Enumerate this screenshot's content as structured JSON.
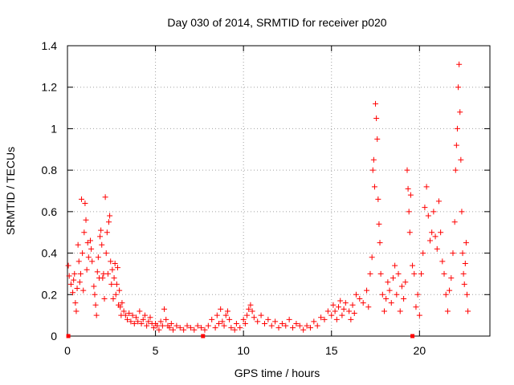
{
  "chart_data": {
    "type": "scatter",
    "title": "Day 030 of 2014, SRMTID for receiver p020",
    "xlabel": "GPS time / hours",
    "ylabel": "SRMTID / TECUs",
    "xlim": [
      0,
      24
    ],
    "ylim": [
      0,
      1.4
    ],
    "x_ticks": [
      0,
      5,
      10,
      15,
      20
    ],
    "y_ticks": [
      0,
      0.2,
      0.4,
      0.6,
      0.8,
      1,
      1.2,
      1.4
    ],
    "x_tick_labels": [
      "0",
      "5",
      "10",
      "15",
      "20"
    ],
    "y_tick_labels": [
      "0",
      "0.2",
      "0.4",
      "0.6",
      "0.8",
      "1",
      "1.2",
      "1.4"
    ],
    "grid": true,
    "legend": "none",
    "marker": "plus",
    "color": "#ff0000",
    "series": [
      {
        "name": "SRMTID",
        "points": [
          [
            0.05,
            0.34
          ],
          [
            0.1,
            0.29
          ],
          [
            0.2,
            0.25
          ],
          [
            0.3,
            0.21
          ],
          [
            0.35,
            0.27
          ],
          [
            0.4,
            0.3
          ],
          [
            0.45,
            0.16
          ],
          [
            0.5,
            0.12
          ],
          [
            0.55,
            0.23
          ],
          [
            0.6,
            0.44
          ],
          [
            0.65,
            0.36
          ],
          [
            0.7,
            0.26
          ],
          [
            0.75,
            0.3
          ],
          [
            0.8,
            0.66
          ],
          [
            0.85,
            0.4
          ],
          [
            0.9,
            0.22
          ],
          [
            0.95,
            0.5
          ],
          [
            1.0,
            0.64
          ],
          [
            1.05,
            0.56
          ],
          [
            1.1,
            0.32
          ],
          [
            1.15,
            0.45
          ],
          [
            1.2,
            0.38
          ],
          [
            1.3,
            0.46
          ],
          [
            1.35,
            0.42
          ],
          [
            1.4,
            0.36
          ],
          [
            1.5,
            0.24
          ],
          [
            1.55,
            0.2
          ],
          [
            1.6,
            0.15
          ],
          [
            1.65,
            0.1
          ],
          [
            1.7,
            0.31
          ],
          [
            1.75,
            0.38
          ],
          [
            1.8,
            0.28
          ],
          [
            1.85,
            0.48
          ],
          [
            1.9,
            0.51
          ],
          [
            1.95,
            0.44
          ],
          [
            2.0,
            0.28
          ],
          [
            2.05,
            0.3
          ],
          [
            2.1,
            0.18
          ],
          [
            2.15,
            0.67
          ],
          [
            2.2,
            0.4
          ],
          [
            2.25,
            0.5
          ],
          [
            2.3,
            0.3
          ],
          [
            2.35,
            0.55
          ],
          [
            2.4,
            0.58
          ],
          [
            2.45,
            0.36
          ],
          [
            2.5,
            0.25
          ],
          [
            2.55,
            0.32
          ],
          [
            2.6,
            0.18
          ],
          [
            2.65,
            0.28
          ],
          [
            2.7,
            0.35
          ],
          [
            2.75,
            0.2
          ],
          [
            2.8,
            0.25
          ],
          [
            2.85,
            0.33
          ],
          [
            2.9,
            0.15
          ],
          [
            2.95,
            0.22
          ],
          [
            3.0,
            0.14
          ],
          [
            3.05,
            0.1
          ],
          [
            3.1,
            0.16
          ],
          [
            3.2,
            0.12
          ],
          [
            3.3,
            0.1
          ],
          [
            3.4,
            0.08
          ],
          [
            3.5,
            0.11
          ],
          [
            3.6,
            0.07
          ],
          [
            3.7,
            0.1
          ],
          [
            3.8,
            0.06
          ],
          [
            3.9,
            0.09
          ],
          [
            4.0,
            0.07
          ],
          [
            4.1,
            0.12
          ],
          [
            4.2,
            0.06
          ],
          [
            4.3,
            0.08
          ],
          [
            4.4,
            0.1
          ],
          [
            4.5,
            0.05
          ],
          [
            4.6,
            0.07
          ],
          [
            4.7,
            0.09
          ],
          [
            4.8,
            0.06
          ],
          [
            4.9,
            0.04
          ],
          [
            5.0,
            0.06
          ],
          [
            5.1,
            0.05
          ],
          [
            5.2,
            0.03
          ],
          [
            5.3,
            0.07
          ],
          [
            5.4,
            0.05
          ],
          [
            5.5,
            0.13
          ],
          [
            5.6,
            0.08
          ],
          [
            5.7,
            0.05
          ],
          [
            5.8,
            0.04
          ],
          [
            5.9,
            0.06
          ],
          [
            6.0,
            0.03
          ],
          [
            6.2,
            0.05
          ],
          [
            6.4,
            0.04
          ],
          [
            6.6,
            0.03
          ],
          [
            6.8,
            0.05
          ],
          [
            7.0,
            0.04
          ],
          [
            7.2,
            0.03
          ],
          [
            7.4,
            0.05
          ],
          [
            7.6,
            0.04
          ],
          [
            7.8,
            0.03
          ],
          [
            8.0,
            0.05
          ],
          [
            8.2,
            0.08
          ],
          [
            8.4,
            0.04
          ],
          [
            8.5,
            0.1
          ],
          [
            8.6,
            0.06
          ],
          [
            8.7,
            0.13
          ],
          [
            8.8,
            0.07
          ],
          [
            8.9,
            0.05
          ],
          [
            9.0,
            0.1
          ],
          [
            9.1,
            0.12
          ],
          [
            9.2,
            0.08
          ],
          [
            9.3,
            0.04
          ],
          [
            9.5,
            0.03
          ],
          [
            9.6,
            0.06
          ],
          [
            9.8,
            0.04
          ],
          [
            10.0,
            0.08
          ],
          [
            10.1,
            0.06
          ],
          [
            10.2,
            0.1
          ],
          [
            10.3,
            0.13
          ],
          [
            10.4,
            0.15
          ],
          [
            10.5,
            0.12
          ],
          [
            10.6,
            0.09
          ],
          [
            10.8,
            0.07
          ],
          [
            11.0,
            0.1
          ],
          [
            11.2,
            0.06
          ],
          [
            11.4,
            0.08
          ],
          [
            11.6,
            0.05
          ],
          [
            11.8,
            0.07
          ],
          [
            12.0,
            0.04
          ],
          [
            12.2,
            0.06
          ],
          [
            12.4,
            0.05
          ],
          [
            12.6,
            0.08
          ],
          [
            12.8,
            0.04
          ],
          [
            13.0,
            0.06
          ],
          [
            13.2,
            0.05
          ],
          [
            13.4,
            0.03
          ],
          [
            13.6,
            0.05
          ],
          [
            13.8,
            0.04
          ],
          [
            14.0,
            0.07
          ],
          [
            14.2,
            0.05
          ],
          [
            14.4,
            0.09
          ],
          [
            14.6,
            0.08
          ],
          [
            14.8,
            0.12
          ],
          [
            15.0,
            0.1
          ],
          [
            15.1,
            0.15
          ],
          [
            15.2,
            0.12
          ],
          [
            15.3,
            0.08
          ],
          [
            15.4,
            0.14
          ],
          [
            15.5,
            0.17
          ],
          [
            15.6,
            0.1
          ],
          [
            15.7,
            0.13
          ],
          [
            15.8,
            0.16
          ],
          [
            16.0,
            0.12
          ],
          [
            16.1,
            0.08
          ],
          [
            16.2,
            0.15
          ],
          [
            16.3,
            0.11
          ],
          [
            16.4,
            0.2
          ],
          [
            16.6,
            0.18
          ],
          [
            16.8,
            0.16
          ],
          [
            17.0,
            0.22
          ],
          [
            17.1,
            0.14
          ],
          [
            17.2,
            0.3
          ],
          [
            17.3,
            0.38
          ],
          [
            17.35,
            0.8
          ],
          [
            17.4,
            0.85
          ],
          [
            17.45,
            0.72
          ],
          [
            17.5,
            1.12
          ],
          [
            17.55,
            1.05
          ],
          [
            17.6,
            0.95
          ],
          [
            17.65,
            0.66
          ],
          [
            17.7,
            0.54
          ],
          [
            17.75,
            0.45
          ],
          [
            17.8,
            0.3
          ],
          [
            17.9,
            0.2
          ],
          [
            18.0,
            0.12
          ],
          [
            18.1,
            0.18
          ],
          [
            18.2,
            0.26
          ],
          [
            18.3,
            0.22
          ],
          [
            18.4,
            0.16
          ],
          [
            18.5,
            0.28
          ],
          [
            18.6,
            0.34
          ],
          [
            18.7,
            0.2
          ],
          [
            18.8,
            0.3
          ],
          [
            18.9,
            0.12
          ],
          [
            19.0,
            0.24
          ],
          [
            19.1,
            0.18
          ],
          [
            19.2,
            0.26
          ],
          [
            19.3,
            0.8
          ],
          [
            19.35,
            0.71
          ],
          [
            19.4,
            0.6
          ],
          [
            19.45,
            0.5
          ],
          [
            19.5,
            0.68
          ],
          [
            19.6,
            0.34
          ],
          [
            19.7,
            0.3
          ],
          [
            19.8,
            0.14
          ],
          [
            19.9,
            0.2
          ],
          [
            20.0,
            0.1
          ],
          [
            20.1,
            0.3
          ],
          [
            20.2,
            0.4
          ],
          [
            20.3,
            0.62
          ],
          [
            20.4,
            0.72
          ],
          [
            20.5,
            0.58
          ],
          [
            20.6,
            0.46
          ],
          [
            20.7,
            0.5
          ],
          [
            20.8,
            0.6
          ],
          [
            20.9,
            0.48
          ],
          [
            21.0,
            0.42
          ],
          [
            21.1,
            0.65
          ],
          [
            21.2,
            0.5
          ],
          [
            21.3,
            0.36
          ],
          [
            21.4,
            0.3
          ],
          [
            21.5,
            0.2
          ],
          [
            21.6,
            0.12
          ],
          [
            21.7,
            0.22
          ],
          [
            21.8,
            0.28
          ],
          [
            21.9,
            0.4
          ],
          [
            22.0,
            0.55
          ],
          [
            22.05,
            0.8
          ],
          [
            22.1,
            0.92
          ],
          [
            22.15,
            1.0
          ],
          [
            22.2,
            1.2
          ],
          [
            22.25,
            1.31
          ],
          [
            22.3,
            1.08
          ],
          [
            22.35,
            0.85
          ],
          [
            22.4,
            0.6
          ],
          [
            22.45,
            0.4
          ],
          [
            22.5,
            0.3
          ],
          [
            22.55,
            0.25
          ],
          [
            22.6,
            0.35
          ],
          [
            22.65,
            0.45
          ],
          [
            22.7,
            0.2
          ],
          [
            22.75,
            0.12
          ]
        ]
      }
    ],
    "gap_markers": [
      {
        "x": 0.05,
        "y": 0
      },
      {
        "x": 7.7,
        "y": 0
      },
      {
        "x": 19.6,
        "y": 0
      }
    ]
  }
}
